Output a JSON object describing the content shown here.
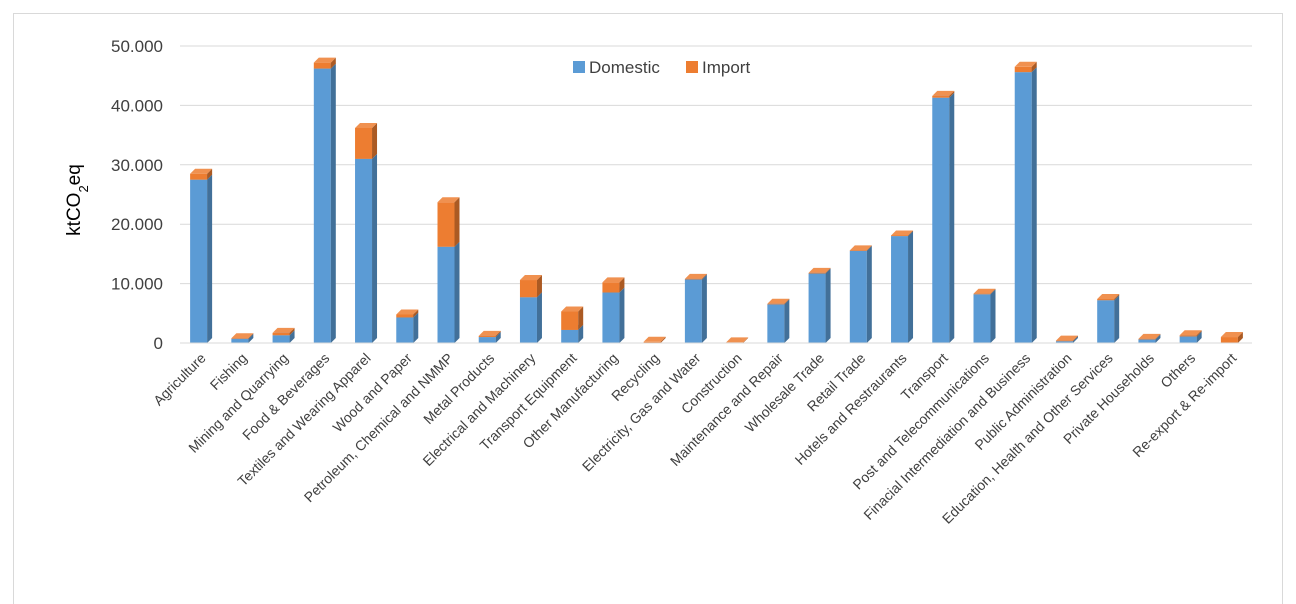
{
  "chart_data": {
    "type": "bar",
    "stacked": true,
    "title": "",
    "xlabel": "",
    "ylabel": "ktCO2eq",
    "ylabel_parts": {
      "base": "ktCO",
      "sub": "2",
      "tail": "eq"
    },
    "ylim": [
      0,
      50000
    ],
    "yticks": [
      "0",
      "10.000",
      "20.000",
      "30.000",
      "40.000",
      "50.000"
    ],
    "grid": true,
    "legend_position": "top-center",
    "categories": [
      "Agriculture",
      "Fishing",
      "Mining and Quarrying",
      "Food & Beverages",
      "Textiles and Wearing Apparel",
      "Wood and Paper",
      "Petroleum, Chemical and NMMP",
      "Metal Products",
      "Electrical and Machinery",
      "Transport Equipment",
      "Other Manufacturing",
      "Recycling",
      "Electricity, Gas and Water",
      "Construction",
      "Maintenance and Repair",
      "Wholesale Trade",
      "Retail Trade",
      "Hotels and Restraurants",
      "Transport",
      "Post and Telecommunications",
      "Finacial Intermediation and Business",
      "Public Administration",
      "Education, Health and Other Services",
      "Private Households",
      "Others",
      "Re-export & Re-import"
    ],
    "series": [
      {
        "name": "Domestic",
        "color": "#5B9BD5",
        "values": [
          27500,
          700,
          1300,
          46200,
          31000,
          4300,
          16200,
          1000,
          7700,
          2200,
          8500,
          0,
          10700,
          0,
          6500,
          11700,
          15500,
          18000,
          41300,
          8200,
          45600,
          300,
          7200,
          600,
          1100,
          0
        ]
      },
      {
        "name": "Import",
        "color": "#ED7D31",
        "values": [
          1000,
          100,
          400,
          1000,
          5200,
          500,
          7500,
          200,
          2900,
          3100,
          1700,
          200,
          100,
          100,
          100,
          100,
          100,
          100,
          300,
          100,
          900,
          100,
          200,
          100,
          200,
          1000
        ]
      }
    ]
  }
}
